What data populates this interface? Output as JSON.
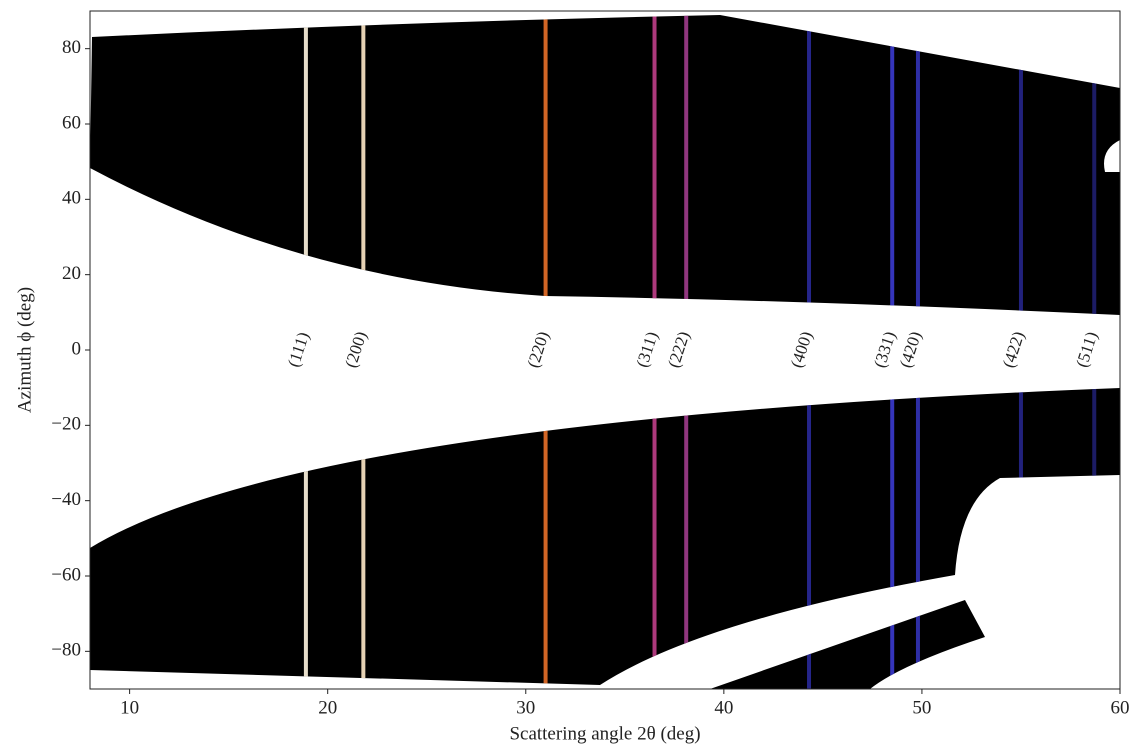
{
  "chart_data": {
    "type": "caked",
    "xlabel": "Scattering angle 2θ (deg)",
    "ylabel": "Azimuth ϕ (deg)",
    "xlim": [
      8,
      60
    ],
    "ylim": [
      -90,
      90
    ],
    "xticks": [
      10,
      20,
      30,
      40,
      50,
      60
    ],
    "yticks": [
      {
        "value": -80,
        "label": "−80"
      },
      {
        "value": -60,
        "label": "−60"
      },
      {
        "value": -40,
        "label": "−40"
      },
      {
        "value": -20,
        "label": "−20"
      },
      0,
      20,
      40,
      60,
      80
    ],
    "peaks": [
      {
        "label": "(111)",
        "x": 18.9,
        "color": "#fff6e0"
      },
      {
        "label": "(200)",
        "x": 21.8,
        "color": "#ffe9c8"
      },
      {
        "label": "(220)",
        "x": 31.0,
        "color": "#e8702a"
      },
      {
        "label": "(311)",
        "x": 36.5,
        "color": "#c0408a"
      },
      {
        "label": "(222)",
        "x": 38.1,
        "color": "#a03c8c"
      },
      {
        "label": "(400)",
        "x": 44.3,
        "color": "#2a2a9a"
      },
      {
        "label": "(331)",
        "x": 48.5,
        "color": "#3b3bd0"
      },
      {
        "label": "(420)",
        "x": 49.8,
        "color": "#3434b8"
      },
      {
        "label": "(422)",
        "x": 55.0,
        "color": "#25258a"
      },
      {
        "label": "(511)",
        "x": 58.7,
        "color": "#202070"
      }
    ]
  }
}
